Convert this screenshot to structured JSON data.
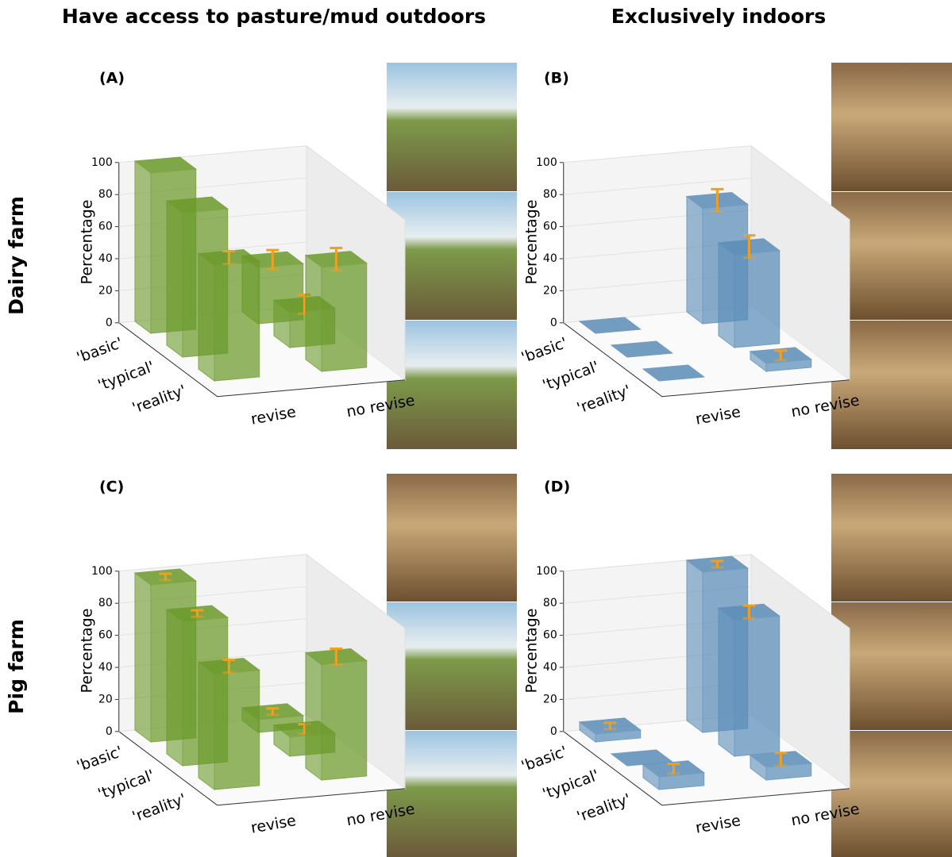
{
  "column_titles": [
    "Have access to pasture/mud outdoors",
    "Exclusively indoors"
  ],
  "row_labels": [
    "Dairy farm",
    "Pig farm"
  ],
  "chart_data": [
    {
      "type": "bar3d",
      "title": "(A)",
      "zlabel": "Percentage",
      "categories": [
        "revise",
        "no revise"
      ],
      "color": "#6b9a2a",
      "zlim": [
        0,
        100
      ],
      "zticks": [
        0,
        20,
        40,
        60,
        80,
        100
      ],
      "series": [
        {
          "name": "'basic'",
          "values": [
            100,
            35
          ],
          "errors": [
            null,
            6
          ]
        },
        {
          "name": "'typical'",
          "values": [
            90,
            22
          ],
          "errors": [
            null,
            6
          ]
        },
        {
          "name": "'reality'",
          "values": [
            72,
            65
          ],
          "errors": [
            4,
            7
          ]
        }
      ]
    },
    {
      "type": "bar3d",
      "title": "(B)",
      "zlabel": "Percentage",
      "categories": [
        "revise",
        "no revise"
      ],
      "color": "#5b8db8",
      "zlim": [
        0,
        100
      ],
      "zticks": [
        0,
        20,
        40,
        60,
        80,
        100
      ],
      "series": [
        {
          "name": "'basic'",
          "values": [
            0,
            72
          ],
          "errors": [
            null,
            7
          ]
        },
        {
          "name": "'typical'",
          "values": [
            0,
            58
          ],
          "errors": [
            null,
            7
          ]
        },
        {
          "name": "'reality'",
          "values": [
            0,
            5
          ],
          "errors": [
            null,
            3
          ]
        }
      ]
    },
    {
      "type": "bar3d",
      "title": "(C)",
      "zlabel": "Percentage",
      "categories": [
        "revise",
        "no revise"
      ],
      "color": "#6b9a2a",
      "zlim": [
        0,
        100
      ],
      "zticks": [
        0,
        20,
        40,
        60,
        80,
        100
      ],
      "series": [
        {
          "name": "'basic'",
          "values": [
            98,
            8
          ],
          "errors": [
            2,
            2
          ]
        },
        {
          "name": "'typical'",
          "values": [
            90,
            12
          ],
          "errors": [
            2,
            3
          ]
        },
        {
          "name": "'reality'",
          "values": [
            72,
            72
          ],
          "errors": [
            4,
            5
          ]
        }
      ]
    },
    {
      "type": "bar3d",
      "title": "(D)",
      "zlabel": "Percentage",
      "categories": [
        "revise",
        "no revise"
      ],
      "color": "#5b8db8",
      "zlim": [
        0,
        100
      ],
      "zticks": [
        0,
        20,
        40,
        60,
        80,
        100
      ],
      "series": [
        {
          "name": "'basic'",
          "values": [
            5,
            100
          ],
          "errors": [
            2,
            2
          ]
        },
        {
          "name": "'typical'",
          "values": [
            0,
            85
          ],
          "errors": [
            null,
            4
          ]
        },
        {
          "name": "'reality'",
          "values": [
            8,
            8
          ],
          "errors": [
            3,
            4
          ]
        }
      ]
    }
  ]
}
